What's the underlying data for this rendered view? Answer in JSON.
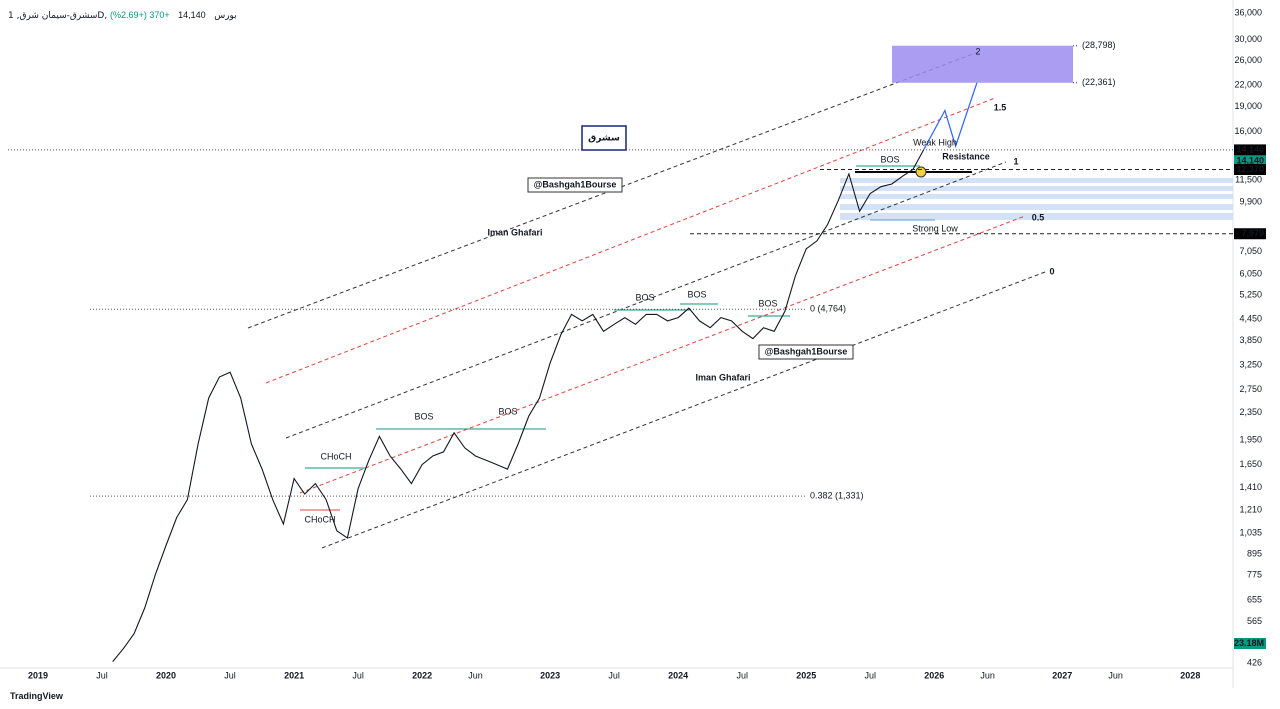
{
  "header": {
    "symbol": "سشرق-سیمان شرق, 1D, بورس",
    "price": "14,140",
    "change": "+370 (+2.69%)"
  },
  "logo": "TradingView",
  "chart_data": {
    "type": "line",
    "log_scale": true,
    "grid": false,
    "color": "#131722",
    "x": [
      "2019-08",
      "2019-09",
      "2019-10",
      "2019-11",
      "2019-12",
      "2020-01",
      "2020-02",
      "2020-03",
      "2020-04",
      "2020-05",
      "2020-06",
      "2020-07",
      "2020-08",
      "2020-09",
      "2020-10",
      "2020-11",
      "2020-12",
      "2021-01",
      "2021-02",
      "2021-03",
      "2021-04",
      "2021-05",
      "2021-06",
      "2021-07",
      "2021-08",
      "2021-09",
      "2021-10",
      "2021-11",
      "2021-12",
      "2022-01",
      "2022-02",
      "2022-03",
      "2022-04",
      "2022-05",
      "2022-06",
      "2022-07",
      "2022-08",
      "2022-09",
      "2022-10",
      "2022-11",
      "2022-12",
      "2023-01",
      "2023-02",
      "2023-03",
      "2023-04",
      "2023-05",
      "2023-06",
      "2023-07",
      "2023-08",
      "2023-09",
      "2023-10",
      "2023-11",
      "2023-12",
      "2024-01",
      "2024-02",
      "2024-03",
      "2024-04",
      "2024-05",
      "2024-06",
      "2024-07",
      "2024-08",
      "2024-09",
      "2024-10",
      "2024-11",
      "2024-12",
      "2025-01",
      "2025-02",
      "2025-03",
      "2025-04",
      "2025-05",
      "2025-06",
      "2025-07",
      "2025-08",
      "2025-09",
      "2025-10",
      "2025-11",
      "2025-12"
    ],
    "values": [
      430,
      470,
      520,
      620,
      780,
      950,
      1150,
      1300,
      1900,
      2600,
      3000,
      3100,
      2600,
      1900,
      1600,
      1300,
      1100,
      1500,
      1350,
      1450,
      1300,
      1050,
      1000,
      1400,
      1700,
      2000,
      1750,
      1600,
      1450,
      1650,
      1750,
      1800,
      2050,
      1850,
      1750,
      1700,
      1650,
      1600,
      1900,
      2300,
      2600,
      3300,
      4000,
      4600,
      4400,
      4600,
      4100,
      4300,
      4500,
      4300,
      4600,
      4600,
      4400,
      4500,
      4800,
      4400,
      4200,
      4500,
      4400,
      4100,
      3900,
      4200,
      4100,
      4700,
      6000,
      7200,
      7600,
      8500,
      10000,
      12000,
      9300,
      10500,
      11000,
      11200,
      11800,
      12370,
      14140
    ],
    "projection": {
      "color": "#2962ff",
      "x": [
        "2025-12",
        "2026-02",
        "2026-03",
        "2026-05"
      ],
      "values": [
        14140,
        18500,
        14500,
        22361
      ]
    },
    "xlim": [
      "2018-10",
      "2028-05"
    ],
    "xticks": [
      {
        "value": "2019-01",
        "label": "2019"
      },
      {
        "value": "2019-07",
        "label": "Jul"
      },
      {
        "value": "2020-01",
        "label": "2020"
      },
      {
        "value": "2020-07",
        "label": "Jul"
      },
      {
        "value": "2021-01",
        "label": "2021"
      },
      {
        "value": "2021-07",
        "label": "Jul"
      },
      {
        "value": "2022-01",
        "label": "2022"
      },
      {
        "value": "2022-06",
        "label": "Jun"
      },
      {
        "value": "2023-01",
        "label": "2023"
      },
      {
        "value": "2023-07",
        "label": "Jul"
      },
      {
        "value": "2024-01",
        "label": "2024"
      },
      {
        "value": "2024-07",
        "label": "Jul"
      },
      {
        "value": "2025-01",
        "label": "2025"
      },
      {
        "value": "2025-07",
        "label": "Jul"
      },
      {
        "value": "2026-01",
        "label": "2026"
      },
      {
        "value": "2026-06",
        "label": "Jun"
      },
      {
        "value": "2027-01",
        "label": "2027"
      },
      {
        "value": "2027-06",
        "label": "Jun"
      },
      {
        "value": "2028-01",
        "label": "2028"
      }
    ],
    "ylim": [
      426,
      36000
    ],
    "yticks": [
      426,
      565,
      655,
      775,
      895,
      {
        "value": 1035,
        "label": "1,035"
      },
      {
        "value": 1210,
        "label": "1,210"
      },
      {
        "value": 1410,
        "label": "1,410"
      },
      {
        "value": 1650,
        "label": "1,650"
      },
      {
        "value": 1950,
        "label": "1,950"
      },
      {
        "value": 2350,
        "label": "2,350"
      },
      {
        "value": 2750,
        "label": "2,750"
      },
      {
        "value": 3250,
        "label": "3,250"
      },
      {
        "value": 3850,
        "label": "3,850"
      },
      {
        "value": 4450,
        "label": "4,450"
      },
      {
        "value": 5250,
        "label": "5,250"
      },
      {
        "value": 6050,
        "label": "6,050"
      },
      {
        "value": 7050,
        "label": "7,050"
      },
      {
        "value": 9900,
        "label": "9,900"
      },
      {
        "value": 11500,
        "label": "11,500"
      },
      {
        "value": 16000,
        "label": "16,000"
      },
      {
        "value": 19000,
        "label": "19,000"
      },
      {
        "value": 22000,
        "label": "22,000"
      },
      {
        "value": 26000,
        "label": "26,000"
      },
      {
        "value": 30000,
        "label": "30,000"
      },
      {
        "value": 36000,
        "label": "36,000"
      }
    ],
    "price_tags": [
      {
        "value": 14140,
        "label": "14,140",
        "color": "#000000"
      },
      {
        "value": 14140,
        "label": "14,140",
        "color": "#089981"
      },
      {
        "value": 12370,
        "label": "12,370",
        "color": "#000000"
      },
      {
        "value": 7979,
        "label": "7,979",
        "color": "#000000"
      }
    ],
    "volume_tag": {
      "label": "23.18M",
      "color": "#089981"
    },
    "fib_levels": [
      {
        "value": 4764,
        "label": "0 (4,764)"
      },
      {
        "value": 1331,
        "label": "0.382 (1,331)"
      }
    ],
    "target_zone": {
      "top": 28798,
      "bottom": 22361,
      "top_label": "(28,798)",
      "bottom_label": "(22,361)",
      "color": "#9c8cf0"
    },
    "title_box": "سشرق",
    "watermarks": [
      "@Bashgah1Bourse",
      "@Bashgah1Bourse"
    ],
    "annotations": [
      "BOS",
      "Resistance",
      "Weak High",
      "Strong Low",
      "BOS",
      "BOS",
      "BOS",
      "BOS",
      "BOS",
      "CHoCH",
      "CHoCH",
      "1",
      "1.5",
      "0.5",
      "0",
      "2",
      "Iman Ghafari",
      "Iman Ghafari"
    ]
  }
}
